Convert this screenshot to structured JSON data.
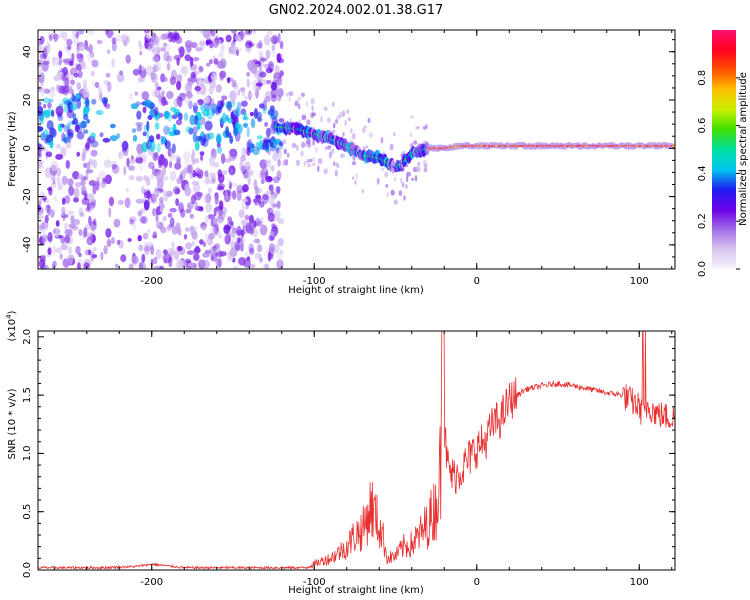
{
  "title": "GN02.2024.002.01.38.G17",
  "chart_data": [
    {
      "type": "heatmap",
      "xlabel": "Height of straight line (km)",
      "ylabel": "Frequency (Hz)",
      "xlim": [
        -270,
        122
      ],
      "ylim": [
        -50,
        49
      ],
      "xticks": [
        -200,
        -100,
        0,
        100
      ],
      "yticks": [
        -40,
        -20,
        0,
        20,
        40
      ],
      "colorbar": {
        "label": "Normalized spectral amplitude",
        "range": [
          0.0,
          1.0
        ],
        "ticks": [
          "0.0",
          "0.2",
          "0.4",
          "0.6",
          "0.8"
        ],
        "colormap": [
          "#f7f2fb",
          "#d8c6f0",
          "#a06ce6",
          "#6a00e8",
          "#1f1ff0",
          "#00c8f0",
          "#00e0a0",
          "#40e000",
          "#c8f000",
          "#ffc000",
          "#ff5000",
          "#ff0020",
          "#ff1070"
        ]
      },
      "ridge": {
        "x": [
          -270,
          -240,
          -210,
          -180,
          -150,
          -125,
          -110,
          -100,
          -90,
          -80,
          -70,
          -60,
          -50,
          -45,
          -40,
          -30,
          -20,
          -10,
          0,
          20,
          50,
          100,
          122
        ],
        "y": [
          10,
          12,
          10,
          8,
          9,
          9,
          8,
          6,
          4,
          1,
          -3,
          -4,
          -8,
          -6,
          -2,
          0,
          0,
          1,
          1,
          1,
          1,
          1,
          1
        ]
      }
    },
    {
      "type": "line",
      "xlabel": "Height of straight line (km)",
      "ylabel": "SNR (10 * v/v)",
      "yscale_label": "(x10^4)",
      "xlim": [
        -270,
        122
      ],
      "ylim": [
        0.0,
        2.05
      ],
      "xticks": [
        -200,
        -100,
        0,
        100
      ],
      "yticks": [
        "0.0",
        "0.5",
        "1.0",
        "1.5",
        "2.0"
      ],
      "series": [
        {
          "color": "#e83030",
          "x": [
            -270,
            -250,
            -230,
            -210,
            -200,
            -180,
            -150,
            -120,
            -105,
            -100,
            -95,
            -90,
            -85,
            -80,
            -75,
            -70,
            -65,
            -62,
            -58,
            -55,
            -50,
            -45,
            -40,
            -35,
            -30,
            -25,
            -22,
            -20,
            -18,
            -15,
            -10,
            -5,
            0,
            5,
            10,
            15,
            20,
            25,
            30,
            40,
            50,
            60,
            70,
            80,
            90,
            95,
            100,
            103,
            105,
            110,
            115,
            122
          ],
          "y": [
            0.02,
            0.02,
            0.02,
            0.03,
            0.05,
            0.02,
            0.02,
            0.02,
            0.02,
            0.05,
            0.08,
            0.1,
            0.15,
            0.2,
            0.3,
            0.35,
            0.55,
            0.45,
            0.3,
            0.1,
            0.12,
            0.2,
            0.22,
            0.3,
            0.4,
            0.55,
            0.9,
            1.2,
            0.9,
            0.8,
            0.85,
            0.95,
            1.05,
            1.1,
            1.25,
            1.3,
            1.45,
            1.5,
            1.55,
            1.58,
            1.6,
            1.58,
            1.55,
            1.52,
            1.5,
            1.45,
            1.4,
            1.3,
            1.42,
            1.35,
            1.32,
            1.3
          ]
        }
      ]
    }
  ]
}
